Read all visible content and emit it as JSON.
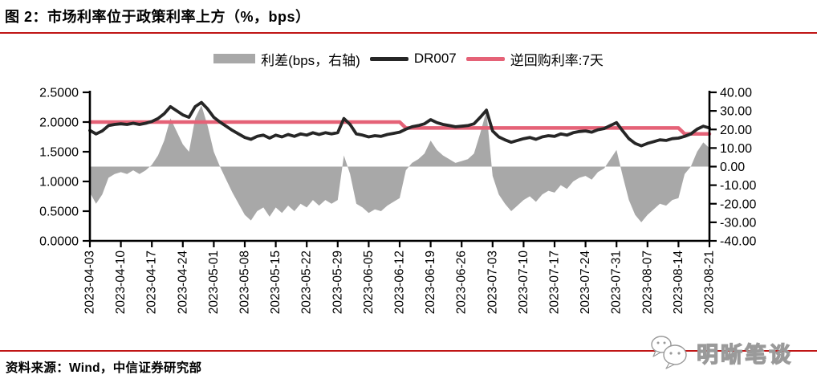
{
  "header": {
    "title": "图 2：市场利率位于政策利率上方（%，bps）"
  },
  "legend": {
    "items": [
      {
        "label": "利差(bps，右轴)",
        "swatch": "area",
        "color": "#a8a8a8"
      },
      {
        "label": "DR007",
        "swatch": "line",
        "color": "#262626"
      },
      {
        "label": "逆回购利率:7天",
        "swatch": "line",
        "color": "#e56277"
      }
    ]
  },
  "footer": {
    "source": "资料来源：Wind，中信证券研究部",
    "watermark": "明晰笔谈"
  },
  "colors": {
    "red_rule": "#c01515",
    "dr007_line": "#262626",
    "policy_line": "#e56277",
    "spread_area": "#a8a8a8",
    "axis": "#000000"
  },
  "chart_data": {
    "type": "line",
    "title": "市场利率位于政策利率上方（%，bps）",
    "x": {
      "start": "2023-04-03",
      "end": "2023-08-21",
      "frequency": "weekdays",
      "tick_labels": [
        "2023-04-03",
        "2023-04-10",
        "2023-04-17",
        "2023-04-24",
        "2023-05-01",
        "2023-05-08",
        "2023-05-15",
        "2023-05-22",
        "2023-05-29",
        "2023-06-05",
        "2023-06-12",
        "2023-06-19",
        "2023-06-26",
        "2023-07-03",
        "2023-07-10",
        "2023-07-17",
        "2023-07-24",
        "2023-07-31",
        "2023-08-07",
        "2023-08-14",
        "2023-08-21"
      ]
    },
    "left_axis": {
      "range": [
        0.0,
        2.5
      ],
      "tick_values": [
        2.5,
        2.0,
        1.5,
        1.0,
        0.5,
        0.0
      ],
      "tick_labels": [
        "2.5000",
        "2.0000",
        "1.5000",
        "1.0000",
        "0.5000",
        "0.0000"
      ]
    },
    "right_axis": {
      "range": [
        -40,
        40
      ],
      "tick_values": [
        40,
        30,
        20,
        10,
        0,
        -10,
        -20,
        -30,
        -40
      ],
      "tick_labels": [
        "40.00",
        "30.00",
        "20.00",
        "10.00",
        "0.00",
        "-10.00",
        "-20.00",
        "-30.00",
        "-40.00"
      ]
    },
    "grid": "off",
    "legend_position": "top-center",
    "series": [
      {
        "name": "DR007",
        "axis": "left",
        "type": "line",
        "color": "#262626",
        "values": [
          1.86,
          1.8,
          1.85,
          1.94,
          1.96,
          1.97,
          1.96,
          1.98,
          1.96,
          1.98,
          2.01,
          2.06,
          2.14,
          2.26,
          2.19,
          2.12,
          2.08,
          2.26,
          2.33,
          2.22,
          2.08,
          2.0,
          1.93,
          1.86,
          1.8,
          1.74,
          1.71,
          1.76,
          1.78,
          1.73,
          1.78,
          1.75,
          1.79,
          1.76,
          1.8,
          1.78,
          1.82,
          1.79,
          1.82,
          1.8,
          1.82,
          2.06,
          1.96,
          1.8,
          1.78,
          1.75,
          1.77,
          1.76,
          1.79,
          1.81,
          1.83,
          1.88,
          1.92,
          1.94,
          1.97,
          2.04,
          1.99,
          1.96,
          1.94,
          1.92,
          1.93,
          1.94,
          1.97,
          2.08,
          2.2,
          1.85,
          1.75,
          1.7,
          1.66,
          1.69,
          1.72,
          1.74,
          1.71,
          1.75,
          1.77,
          1.76,
          1.8,
          1.78,
          1.82,
          1.84,
          1.85,
          1.83,
          1.87,
          1.89,
          1.94,
          1.99,
          1.85,
          1.72,
          1.64,
          1.6,
          1.64,
          1.67,
          1.7,
          1.69,
          1.72,
          1.73,
          1.76,
          1.8,
          1.88,
          1.93,
          1.9
        ]
      },
      {
        "name": "逆回购利率:7天",
        "axis": "left",
        "type": "step",
        "color": "#e56277",
        "segments": [
          {
            "rate": 2.0,
            "from": "2023-04-03",
            "to": "2023-06-12",
            "until_index": 50
          },
          {
            "rate": 1.9,
            "from": "2023-06-13",
            "to": "2023-08-14",
            "until_index": 95
          },
          {
            "rate": 1.8,
            "from": "2023-08-15",
            "to": "2023-08-21",
            "until_index": 100
          }
        ]
      },
      {
        "name": "利差(bps，右轴)",
        "axis": "right",
        "type": "area",
        "color": "#a8a8a8",
        "derived": "(DR007 − 逆回购利率:7天) × 100，单位bps"
      }
    ]
  }
}
